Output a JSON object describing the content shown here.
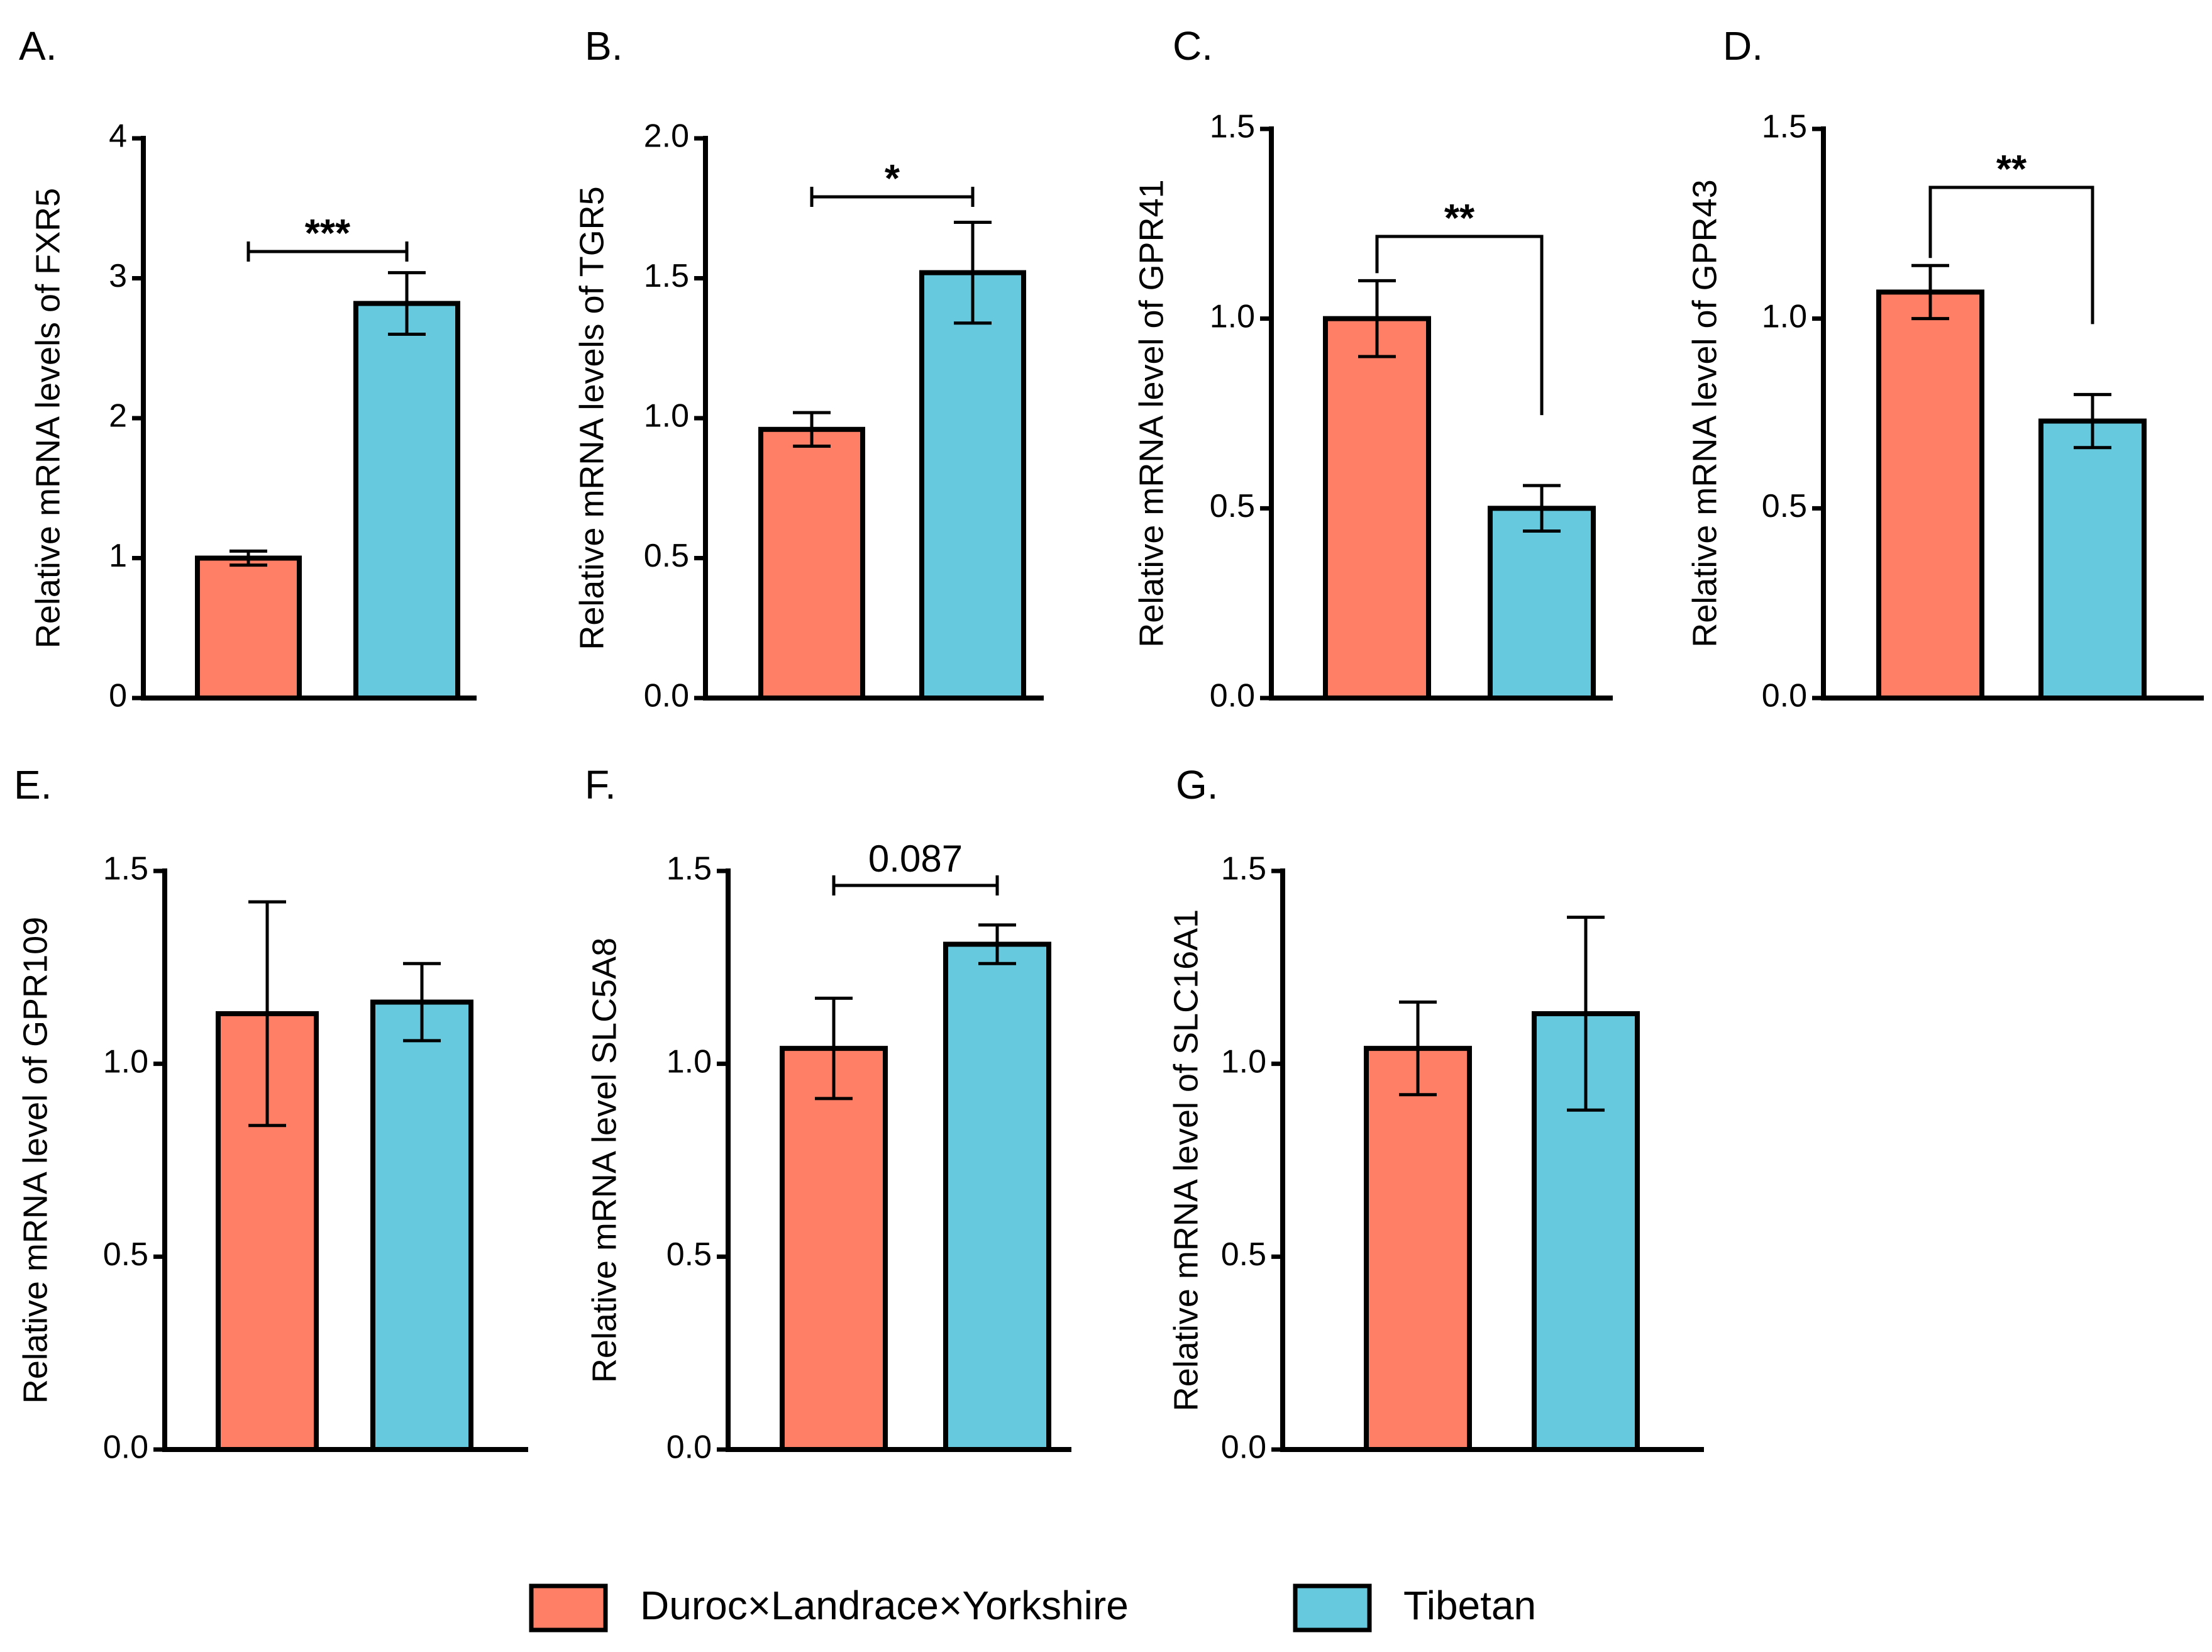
{
  "colors": {
    "group1": "#FF7F66",
    "group2": "#66C9DE",
    "stroke": "#000000"
  },
  "legend": [
    {
      "label": "Duroc×Landrace×Yorkshire",
      "color": "#FF7F66"
    },
    {
      "label": "Tibetan",
      "color": "#66C9DE"
    }
  ],
  "chart_data": [
    {
      "panel": "A.",
      "type": "bar",
      "ylabel": "Relative mRNA levels of FXR5",
      "ylim": [
        0,
        4
      ],
      "yticks": [
        "0",
        "1",
        "2",
        "3",
        "4"
      ],
      "categories": [
        "Duroc×Landrace×Yorkshire",
        "Tibetan"
      ],
      "values": [
        1.0,
        2.82
      ],
      "errors": [
        0.05,
        0.22
      ],
      "significance": {
        "label": "***",
        "style": "flat"
      }
    },
    {
      "panel": "B.",
      "type": "bar",
      "ylabel": "Relative mRNA levels of TGR5",
      "ylim": [
        0,
        2
      ],
      "yticks": [
        "0.0",
        "0.5",
        "1.0",
        "1.5",
        "2.0"
      ],
      "categories": [
        "Duroc×Landrace×Yorkshire",
        "Tibetan"
      ],
      "values": [
        0.96,
        1.52
      ],
      "errors": [
        0.06,
        0.18
      ],
      "significance": {
        "label": "*",
        "style": "flat"
      }
    },
    {
      "panel": "C.",
      "type": "bar",
      "ylabel": "Relative mRNA level of GPR41",
      "ylim": [
        0,
        1.5
      ],
      "yticks": [
        "0.0",
        "0.5",
        "1.0",
        "1.5"
      ],
      "categories": [
        "Duroc×Landrace×Yorkshire",
        "Tibetan"
      ],
      "values": [
        1.0,
        0.5
      ],
      "errors": [
        0.1,
        0.06
      ],
      "significance": {
        "label": "**",
        "style": "bracket"
      }
    },
    {
      "panel": "D.",
      "type": "bar",
      "ylabel": "Relative mRNA level of GPR43",
      "ylim": [
        0,
        1.5
      ],
      "yticks": [
        "0.0",
        "0.5",
        "1.0",
        "1.5"
      ],
      "categories": [
        "Duroc×Landrace×Yorkshire",
        "Tibetan"
      ],
      "values": [
        1.07,
        0.73
      ],
      "errors": [
        0.07,
        0.07
      ],
      "significance": {
        "label": "**",
        "style": "bracket"
      }
    },
    {
      "panel": "E.",
      "type": "bar",
      "ylabel": "Relative mRNA level of GPR109",
      "ylim": [
        0,
        1.5
      ],
      "yticks": [
        "0.0",
        "0.5",
        "1.0",
        "1.5"
      ],
      "categories": [
        "Duroc×Landrace×Yorkshire",
        "Tibetan"
      ],
      "values": [
        1.13,
        1.16
      ],
      "errors": [
        0.29,
        0.1
      ],
      "significance": null
    },
    {
      "panel": "F.",
      "type": "bar",
      "ylabel": "Relative mRNA level SLC5A8",
      "ylim": [
        0,
        1.5
      ],
      "yticks": [
        "0.0",
        "0.5",
        "1.0",
        "1.5"
      ],
      "categories": [
        "Duroc×Landrace×Yorkshire",
        "Tibetan"
      ],
      "values": [
        1.04,
        1.31
      ],
      "errors": [
        0.13,
        0.05
      ],
      "significance": {
        "label": "0.087",
        "style": "flat"
      }
    },
    {
      "panel": "G.",
      "type": "bar",
      "ylabel": "Relative mRNA level of SLC16A1",
      "ylim": [
        0,
        1.5
      ],
      "yticks": [
        "0.0",
        "0.5",
        "1.0",
        "1.5"
      ],
      "categories": [
        "Duroc×Landrace×Yorkshire",
        "Tibetan"
      ],
      "values": [
        1.04,
        1.13
      ],
      "errors": [
        0.12,
        0.25
      ],
      "significance": null
    }
  ]
}
